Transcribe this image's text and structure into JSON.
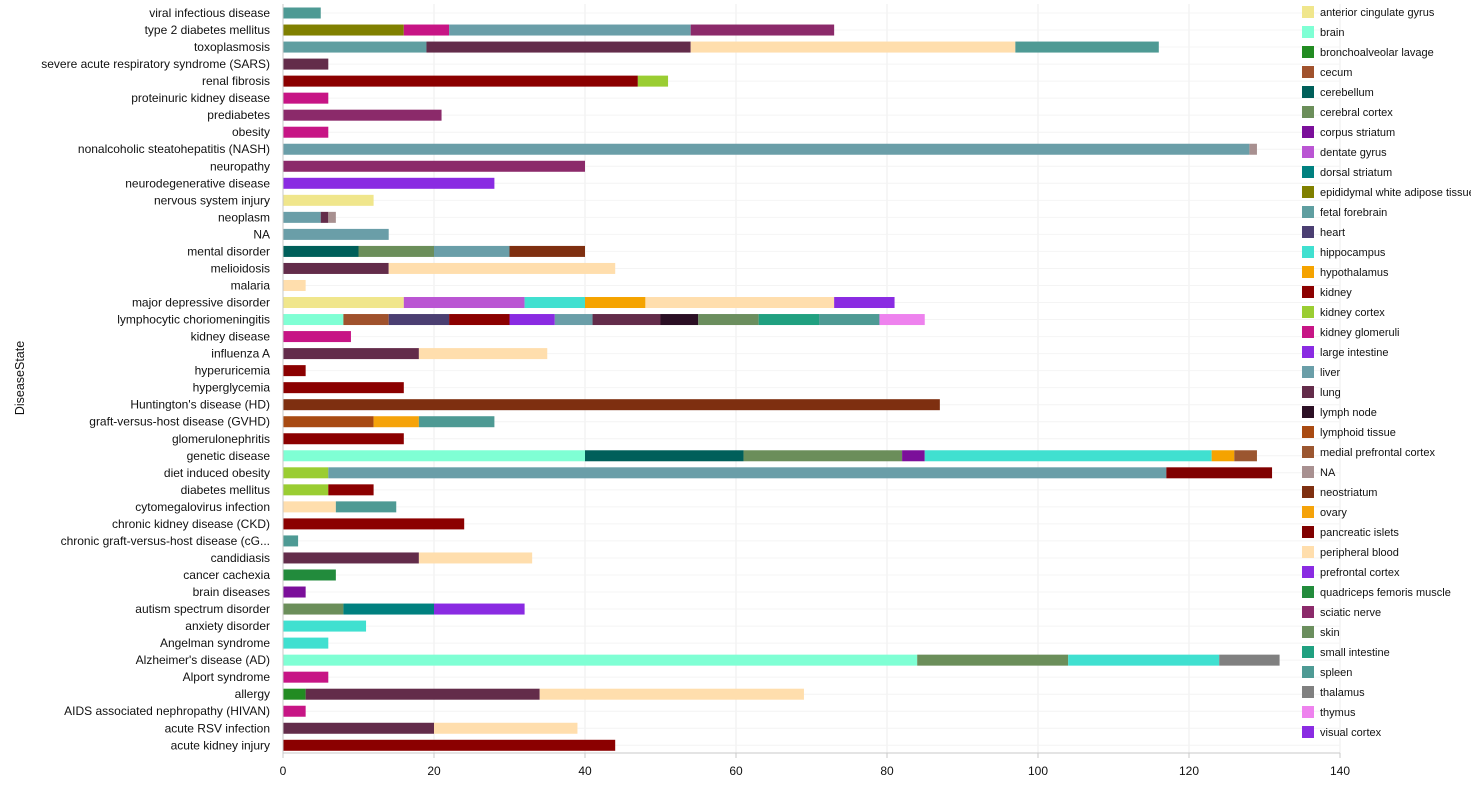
{
  "chart_data": {
    "type": "bar",
    "orientation": "horizontal",
    "stacked": true,
    "title": "",
    "xlabel": "",
    "ylabel": "DiseaseState",
    "xlim": [
      0,
      140
    ],
    "xticks": [
      0,
      20,
      40,
      60,
      80,
      100,
      120,
      140
    ],
    "grid": true,
    "legend_position": "right",
    "tissues": [
      {
        "name": "anterior cingulate gyrus",
        "color": "#F0E68C"
      },
      {
        "name": "brain",
        "color": "#7FFFD4"
      },
      {
        "name": "bronchoalveolar lavage",
        "color": "#228B22"
      },
      {
        "name": "cecum",
        "color": "#A0522D"
      },
      {
        "name": "cerebellum",
        "color": "#005F5A"
      },
      {
        "name": "cerebral cortex",
        "color": "#6B8E5A"
      },
      {
        "name": "corpus striatum",
        "color": "#7B0F9A"
      },
      {
        "name": "dentate gyrus",
        "color": "#BA55D3"
      },
      {
        "name": "dorsal striatum",
        "color": "#00807F"
      },
      {
        "name": "epididymal white adipose tissue",
        "color": "#808000"
      },
      {
        "name": "fetal forebrain",
        "color": "#5F9EA0"
      },
      {
        "name": "heart",
        "color": "#4B3F72"
      },
      {
        "name": "hippocampus",
        "color": "#40E0D0"
      },
      {
        "name": "hypothalamus",
        "color": "#F5A300"
      },
      {
        "name": "kidney",
        "color": "#8B0000"
      },
      {
        "name": "kidney cortex",
        "color": "#9ACD32"
      },
      {
        "name": "kidney glomeruli",
        "color": "#C71585"
      },
      {
        "name": "large intestine",
        "color": "#8A2BE2"
      },
      {
        "name": "liver",
        "color": "#6A9EA8"
      },
      {
        "name": "lung",
        "color": "#632C4A"
      },
      {
        "name": "lymph node",
        "color": "#2B0F24"
      },
      {
        "name": "lymphoid tissue",
        "color": "#A84A12"
      },
      {
        "name": "medial prefrontal cortex",
        "color": "#9B5630"
      },
      {
        "name": "NA",
        "color": "#A89090"
      },
      {
        "name": "neostriatum",
        "color": "#7E2F10"
      },
      {
        "name": "ovary",
        "color": "#F5A30A"
      },
      {
        "name": "pancreatic islets",
        "color": "#800000"
      },
      {
        "name": "peripheral blood",
        "color": "#FFDEAD"
      },
      {
        "name": "prefrontal cortex",
        "color": "#8A2BE2"
      },
      {
        "name": "quadriceps femoris muscle",
        "color": "#228B3C"
      },
      {
        "name": "sciatic nerve",
        "color": "#8B2A6A"
      },
      {
        "name": "skin",
        "color": "#6B8E5E"
      },
      {
        "name": "small intestine",
        "color": "#20A080"
      },
      {
        "name": "spleen",
        "color": "#4E9A94"
      },
      {
        "name": "thalamus",
        "color": "#808080"
      },
      {
        "name": "thymus",
        "color": "#EE82EE"
      },
      {
        "name": "visual cortex",
        "color": "#8A2BE2"
      }
    ],
    "categories": [
      {
        "label": "viral infectious disease",
        "segments": [
          [
            "spleen",
            5
          ]
        ]
      },
      {
        "label": "type 2 diabetes mellitus",
        "segments": [
          [
            "epididymal white adipose tissue",
            16
          ],
          [
            "kidney glomeruli",
            6
          ],
          [
            "liver",
            32
          ],
          [
            "sciatic nerve",
            19
          ]
        ]
      },
      {
        "label": "toxoplasmosis",
        "segments": [
          [
            "fetal forebrain",
            19
          ],
          [
            "lung",
            35
          ],
          [
            "peripheral blood",
            43
          ],
          [
            "spleen",
            19
          ]
        ]
      },
      {
        "label": "severe acute respiratory syndrome (SARS)",
        "segments": [
          [
            "lung",
            6
          ]
        ]
      },
      {
        "label": "renal fibrosis",
        "segments": [
          [
            "kidney",
            47
          ],
          [
            "kidney cortex",
            4
          ]
        ]
      },
      {
        "label": "proteinuric kidney disease",
        "segments": [
          [
            "kidney glomeruli",
            6
          ]
        ]
      },
      {
        "label": "prediabetes",
        "segments": [
          [
            "sciatic nerve",
            21
          ]
        ]
      },
      {
        "label": "obesity",
        "segments": [
          [
            "kidney glomeruli",
            6
          ]
        ]
      },
      {
        "label": "nonalcoholic steatohepatitis (NASH)",
        "segments": [
          [
            "liver",
            128
          ],
          [
            "NA",
            1
          ]
        ]
      },
      {
        "label": "neuropathy",
        "segments": [
          [
            "sciatic nerve",
            40
          ]
        ]
      },
      {
        "label": "neurodegenerative disease",
        "segments": [
          [
            "prefrontal cortex",
            28
          ]
        ]
      },
      {
        "label": "nervous system injury",
        "segments": [
          [
            "anterior cingulate gyrus",
            12
          ]
        ]
      },
      {
        "label": "neoplasm",
        "segments": [
          [
            "liver",
            5
          ],
          [
            "lung",
            1
          ],
          [
            "NA",
            1
          ]
        ]
      },
      {
        "label": "NA",
        "segments": [
          [
            "liver",
            14
          ]
        ]
      },
      {
        "label": "mental disorder",
        "segments": [
          [
            "cerebellum",
            10
          ],
          [
            "cerebral cortex",
            10
          ],
          [
            "liver",
            10
          ],
          [
            "neostriatum",
            10
          ]
        ]
      },
      {
        "label": "melioidosis",
        "segments": [
          [
            "lung",
            14
          ],
          [
            "peripheral blood",
            30
          ]
        ]
      },
      {
        "label": "malaria",
        "segments": [
          [
            "peripheral blood",
            3
          ]
        ]
      },
      {
        "label": "major depressive disorder",
        "segments": [
          [
            "anterior cingulate gyrus",
            16
          ],
          [
            "dentate gyrus",
            16
          ],
          [
            "hippocampus",
            8
          ],
          [
            "hypothalamus",
            8
          ],
          [
            "peripheral blood",
            25
          ],
          [
            "prefrontal cortex",
            8
          ]
        ]
      },
      {
        "label": "lymphocytic choriomeningitis",
        "segments": [
          [
            "brain",
            8
          ],
          [
            "cecum",
            6
          ],
          [
            "heart",
            8
          ],
          [
            "kidney",
            8
          ],
          [
            "large intestine",
            6
          ],
          [
            "liver",
            5
          ],
          [
            "lung",
            9
          ],
          [
            "lymph node",
            5
          ],
          [
            "skin",
            8
          ],
          [
            "small intestine",
            8
          ],
          [
            "spleen",
            8
          ],
          [
            "thymus",
            6
          ]
        ]
      },
      {
        "label": "kidney disease",
        "segments": [
          [
            "kidney glomeruli",
            9
          ]
        ]
      },
      {
        "label": "influenza A",
        "segments": [
          [
            "lung",
            18
          ],
          [
            "peripheral blood",
            17
          ]
        ]
      },
      {
        "label": "hyperuricemia",
        "segments": [
          [
            "kidney",
            3
          ]
        ]
      },
      {
        "label": "hyperglycemia",
        "segments": [
          [
            "kidney",
            16
          ]
        ]
      },
      {
        "label": "Huntington's disease (HD)",
        "segments": [
          [
            "neostriatum",
            87
          ]
        ]
      },
      {
        "label": "graft-versus-host disease (GVHD)",
        "segments": [
          [
            "lymphoid tissue",
            12
          ],
          [
            "ovary",
            6
          ],
          [
            "spleen",
            10
          ]
        ]
      },
      {
        "label": "glomerulonephritis",
        "segments": [
          [
            "kidney",
            16
          ]
        ]
      },
      {
        "label": "genetic disease",
        "segments": [
          [
            "brain",
            40
          ],
          [
            "cerebellum",
            21
          ],
          [
            "cerebral cortex",
            21
          ],
          [
            "corpus striatum",
            3
          ],
          [
            "hippocampus",
            38
          ],
          [
            "hypothalamus",
            3
          ],
          [
            "medial prefrontal cortex",
            3
          ]
        ]
      },
      {
        "label": "diet induced obesity",
        "segments": [
          [
            "kidney cortex",
            6
          ],
          [
            "liver",
            111
          ],
          [
            "pancreatic islets",
            14
          ]
        ]
      },
      {
        "label": "diabetes mellitus",
        "segments": [
          [
            "kidney cortex",
            6
          ],
          [
            "kidney",
            6
          ]
        ]
      },
      {
        "label": "cytomegalovirus infection",
        "segments": [
          [
            "peripheral blood",
            7
          ],
          [
            "spleen",
            8
          ]
        ]
      },
      {
        "label": "chronic kidney disease (CKD)",
        "segments": [
          [
            "kidney",
            24
          ]
        ]
      },
      {
        "label": "chronic graft-versus-host disease (cG...",
        "segments": [
          [
            "spleen",
            2
          ]
        ]
      },
      {
        "label": "candidiasis",
        "segments": [
          [
            "lung",
            18
          ],
          [
            "peripheral blood",
            15
          ]
        ]
      },
      {
        "label": "cancer cachexia",
        "segments": [
          [
            "quadriceps femoris muscle",
            7
          ]
        ]
      },
      {
        "label": "brain diseases",
        "segments": [
          [
            "corpus striatum",
            3
          ]
        ]
      },
      {
        "label": "autism spectrum disorder",
        "segments": [
          [
            "cerebral cortex",
            8
          ],
          [
            "dorsal striatum",
            12
          ],
          [
            "prefrontal cortex",
            12
          ]
        ]
      },
      {
        "label": "anxiety disorder",
        "segments": [
          [
            "hippocampus",
            11
          ]
        ]
      },
      {
        "label": "Angelman syndrome",
        "segments": [
          [
            "hippocampus",
            6
          ]
        ]
      },
      {
        "label": "Alzheimer's disease (AD)",
        "segments": [
          [
            "brain",
            84
          ],
          [
            "cerebral cortex",
            20
          ],
          [
            "hippocampus",
            20
          ],
          [
            "thalamus",
            8
          ]
        ]
      },
      {
        "label": "Alport syndrome",
        "segments": [
          [
            "kidney glomeruli",
            6
          ]
        ]
      },
      {
        "label": "allergy",
        "segments": [
          [
            "bronchoalveolar lavage",
            3
          ],
          [
            "lung",
            31
          ],
          [
            "peripheral blood",
            35
          ]
        ]
      },
      {
        "label": "AIDS associated nephropathy (HIVAN)",
        "segments": [
          [
            "kidney glomeruli",
            3
          ]
        ]
      },
      {
        "label": "acute RSV infection",
        "segments": [
          [
            "lung",
            20
          ],
          [
            "peripheral blood",
            19
          ]
        ]
      },
      {
        "label": "acute kidney injury",
        "segments": [
          [
            "kidney",
            44
          ]
        ]
      }
    ]
  }
}
